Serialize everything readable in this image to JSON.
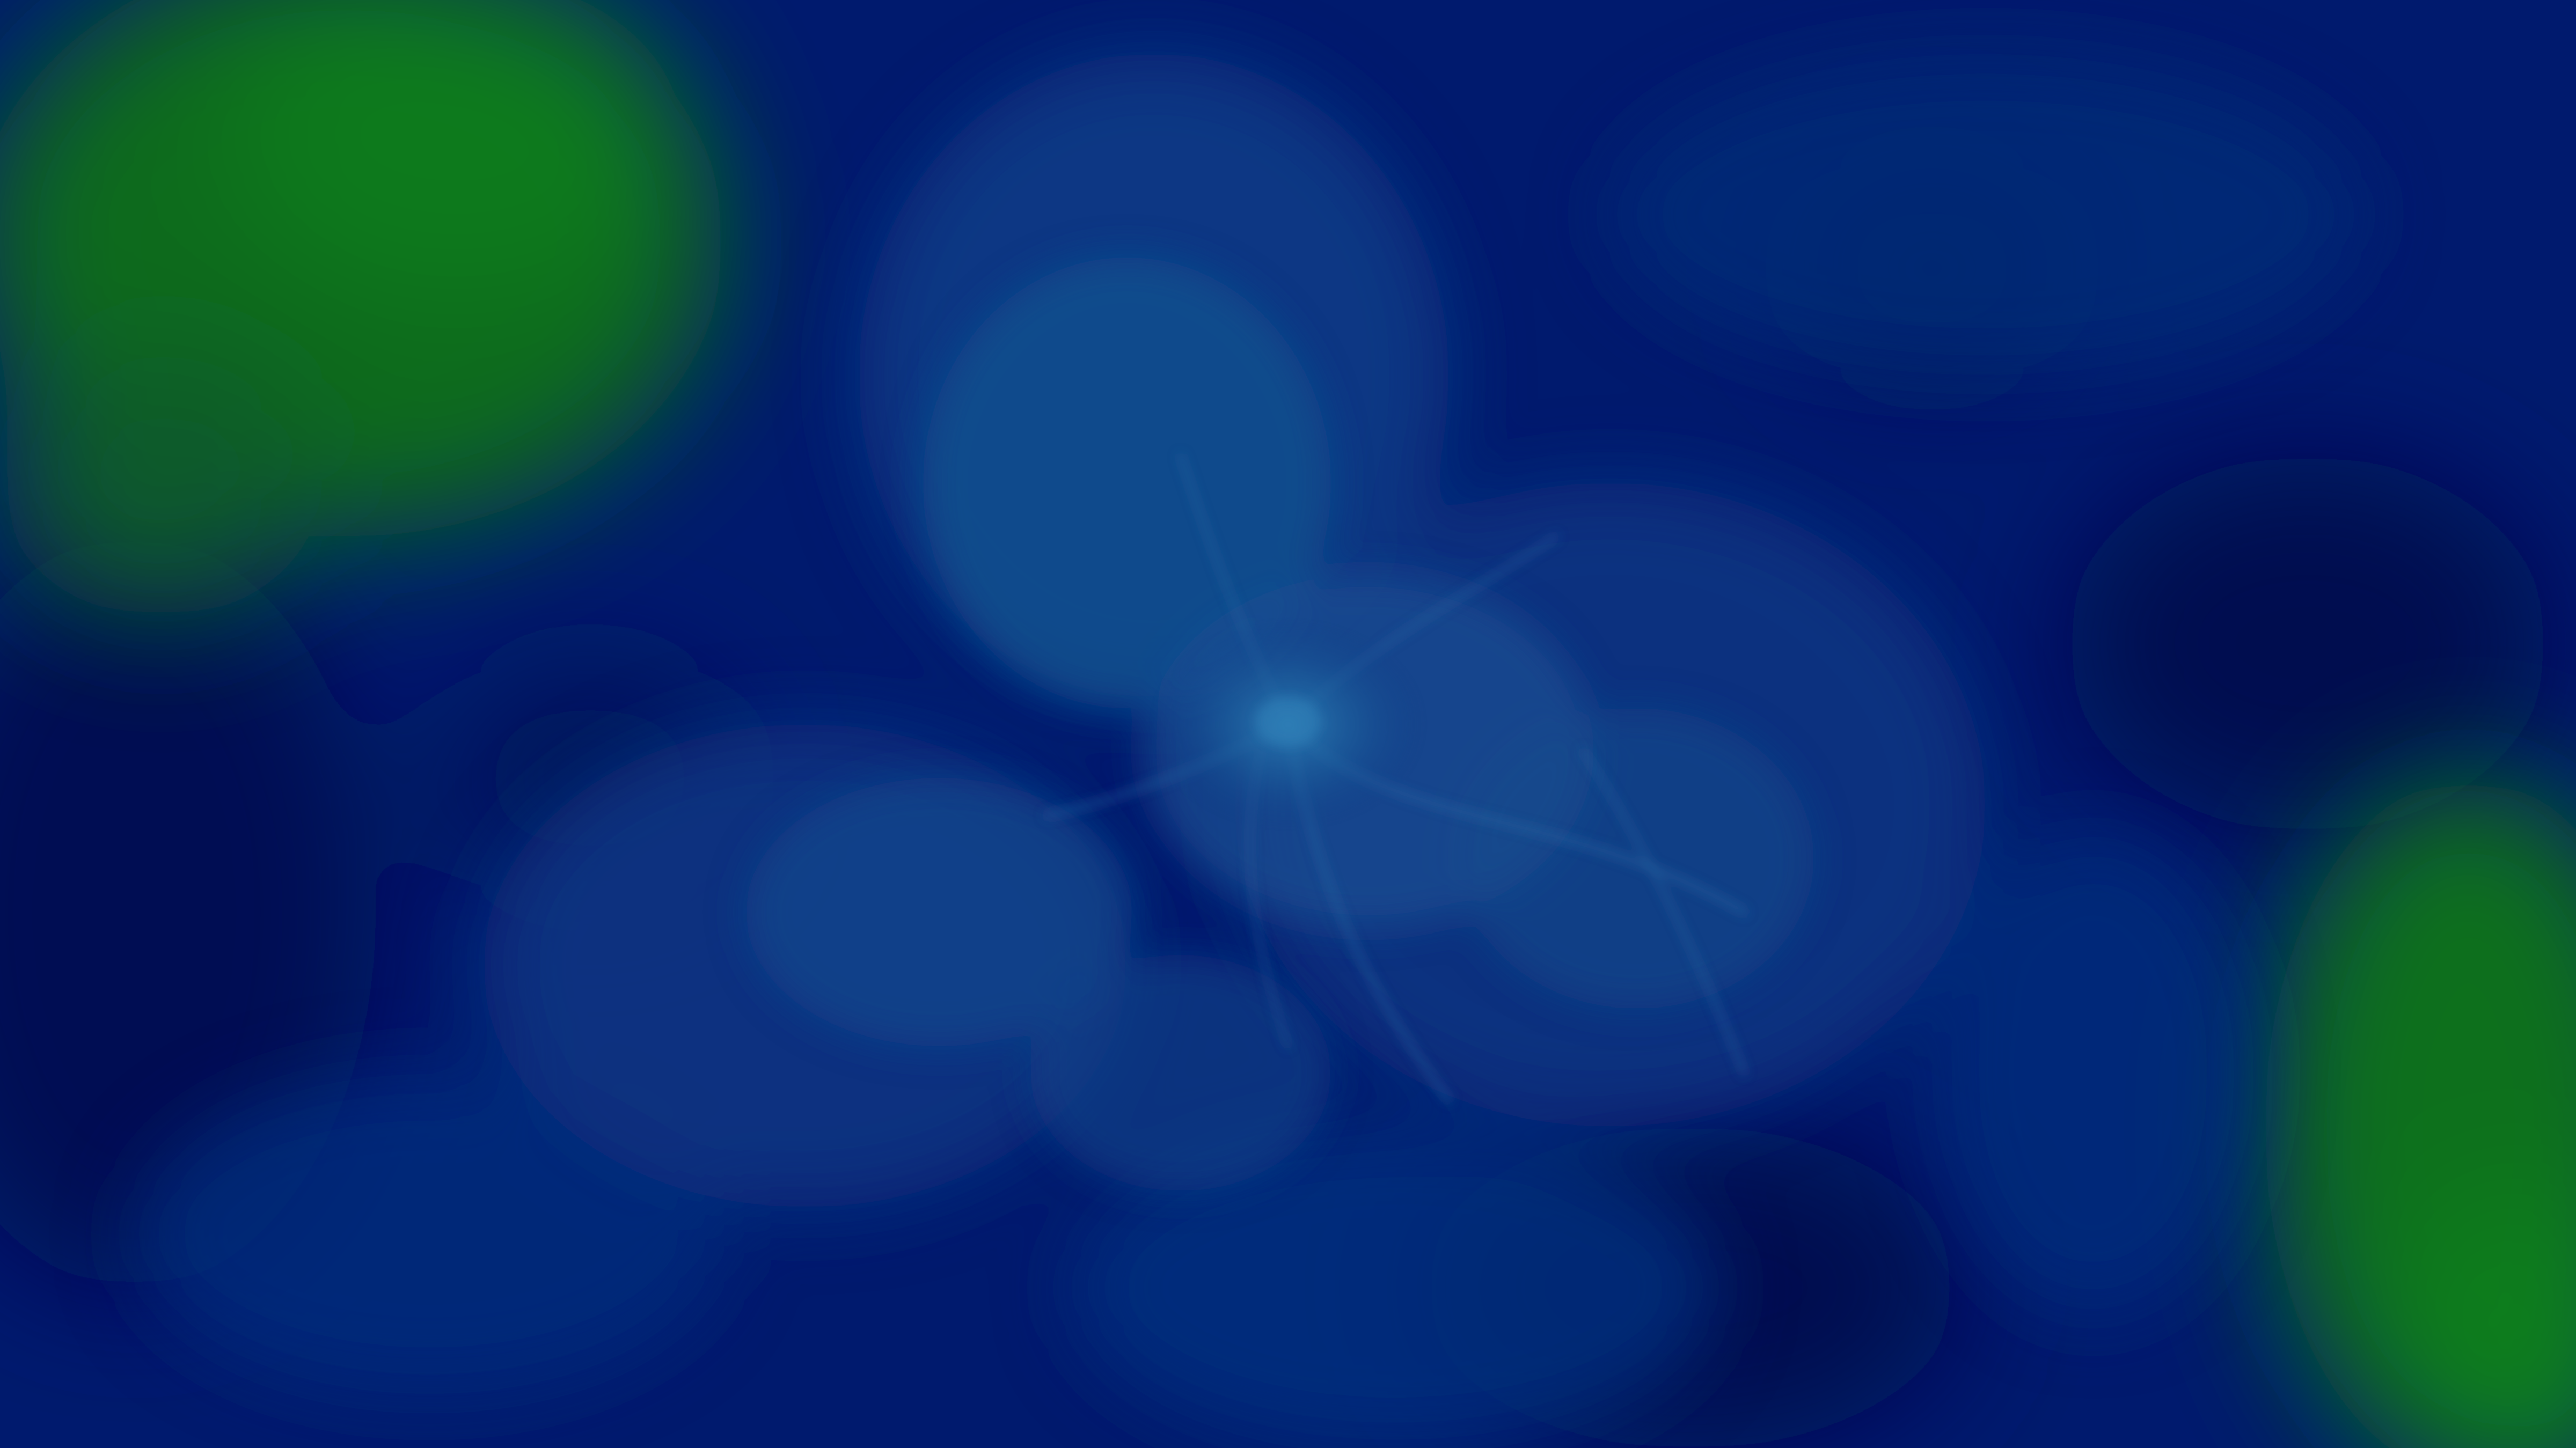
{
  "scene": {
    "colors": {
      "background": "#001a6e",
      "deep_blue": "#00115a",
      "mid_blue": "#0a3a86",
      "light_blue": "#1a5c9c",
      "core": "#2a78b0",
      "green": "#0b7a1e",
      "green_bright": "#12962a"
    }
  }
}
